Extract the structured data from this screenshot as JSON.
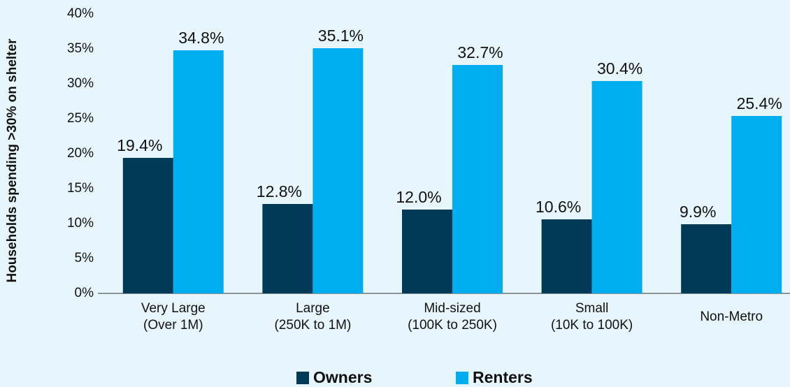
{
  "chart_data": {
    "type": "bar",
    "y_label": "Households spending >30% on shelter",
    "categories": [
      "Very Large\n(Over 1M)",
      "Large\n(250K to 1M)",
      "Mid-sized\n(100K to 250K)",
      "Small\n(10K to 100K)",
      "Non-Metro"
    ],
    "series": [
      {
        "name": "Owners",
        "color": "#003a57",
        "values": [
          19.4,
          12.8,
          12.0,
          10.6,
          9.9
        ],
        "value_labels": [
          "19.4%",
          "12.8%",
          "12.0%",
          "10.6%",
          "9.9%"
        ]
      },
      {
        "name": "Renters",
        "color": "#00adef",
        "values": [
          34.8,
          35.1,
          32.7,
          30.4,
          25.4
        ],
        "value_labels": [
          "34.8%",
          "35.1%",
          "32.7%",
          "30.4%",
          "25.4%"
        ]
      }
    ],
    "ylim": [
      0,
      40
    ],
    "yticks": [
      {
        "value": 0,
        "label": "0%"
      },
      {
        "value": 5,
        "label": "5%"
      },
      {
        "value": 10,
        "label": "10%"
      },
      {
        "value": 15,
        "label": "15%"
      },
      {
        "value": 20,
        "label": "20%"
      },
      {
        "value": 25,
        "label": "25%"
      },
      {
        "value": 30,
        "label": "30%"
      },
      {
        "value": 35,
        "label": "35%"
      },
      {
        "value": 40,
        "label": "40%"
      }
    ]
  }
}
